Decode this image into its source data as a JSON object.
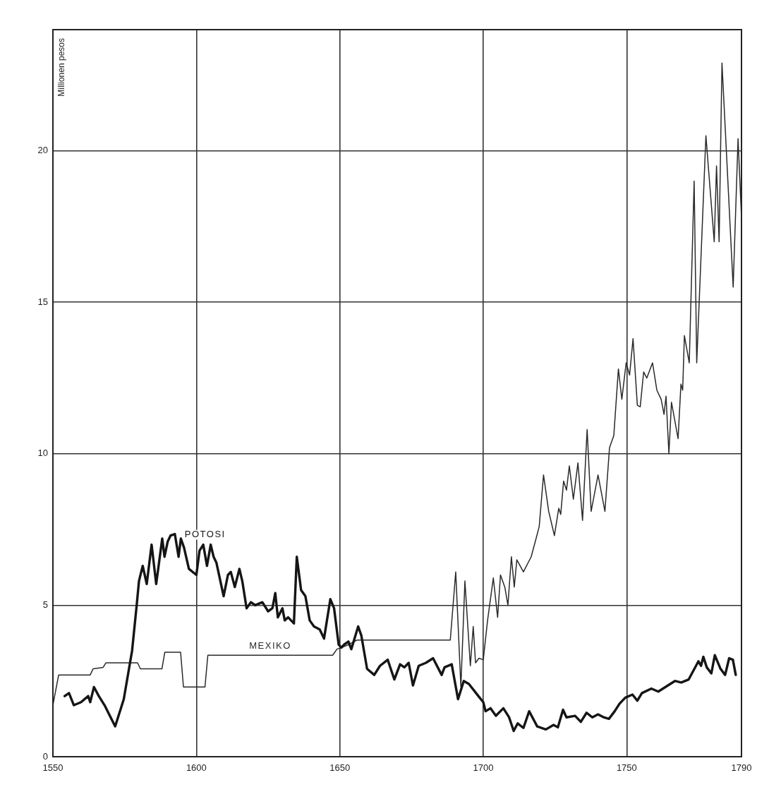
{
  "chart_data": {
    "type": "line",
    "ylabel": "Millionen pesos",
    "xlim": [
      1550,
      1790
    ],
    "xticks": [
      1550,
      1600,
      1650,
      1700,
      1750,
      1790
    ],
    "ylim": [
      0,
      24
    ],
    "yticks": [
      0,
      5,
      10,
      15,
      20
    ],
    "grid": true,
    "legend": false,
    "marker": "none",
    "line_style": "solid",
    "series": [
      {
        "name": "POTOSI",
        "color": "#151515",
        "x": [
          1554.1,
          1555.6,
          1557.3,
          1559.8,
          1562.3,
          1563,
          1564.3,
          1566,
          1568,
          1571.7,
          1574.7,
          1577.6,
          1579.2,
          1580,
          1581.3,
          1582.7,
          1584.4,
          1586,
          1588.1,
          1588.9,
          1590,
          1591,
          1592.5,
          1593.8,
          1594.6,
          1595.7,
          1597.4,
          1600,
          1601.1,
          1602.4,
          1603.7,
          1605,
          1606,
          1607,
          1609.5,
          1611,
          1612,
          1613.4,
          1615,
          1616,
          1617.5,
          1619,
          1620.5,
          1623,
          1625,
          1626.5,
          1627.5,
          1628.4,
          1630,
          1630.8,
          1632,
          1634,
          1635,
          1636.5,
          1638,
          1639.5,
          1641,
          1643,
          1644.5,
          1646.7,
          1648,
          1649.6,
          1650.5,
          1651.5,
          1653,
          1654,
          1656.4,
          1657.5,
          1659.5,
          1662,
          1664,
          1666.7,
          1669,
          1671,
          1672.5,
          1674,
          1675.5,
          1677.5,
          1680,
          1682.5,
          1685.5,
          1686.5,
          1689,
          1691.2,
          1693.2,
          1695,
          1698.3,
          1700,
          1700.8,
          1702.5,
          1704.4,
          1707,
          1709,
          1710.6,
          1712,
          1714,
          1716,
          1718.8,
          1721.8,
          1724.5,
          1726,
          1727.8,
          1729,
          1732,
          1734,
          1736,
          1738,
          1740,
          1742,
          1743.8,
          1745.8,
          1747.5,
          1749.5,
          1752,
          1753.7,
          1755.3,
          1758.6,
          1761,
          1763.5,
          1766.8,
          1769,
          1771.6,
          1775,
          1775.9,
          1776.7,
          1777.9,
          1779.5,
          1780.7,
          1782.7,
          1784.3,
          1785.7,
          1787,
          1788
        ],
        "values": [
          2.0,
          2.1,
          1.7,
          1.8,
          2.0,
          1.8,
          2.3,
          2.0,
          1.7,
          1.0,
          1.9,
          3.5,
          5.0,
          5.8,
          6.3,
          5.7,
          7.0,
          5.7,
          7.2,
          6.6,
          7.1,
          7.3,
          7.35,
          6.6,
          7.2,
          6.9,
          6.2,
          6.0,
          6.8,
          7.0,
          6.3,
          7.0,
          6.6,
          6.4,
          5.3,
          6.0,
          6.1,
          5.6,
          6.2,
          5.8,
          4.9,
          5.1,
          5.0,
          5.1,
          4.8,
          4.9,
          5.4,
          4.6,
          4.9,
          4.5,
          4.6,
          4.4,
          6.6,
          5.5,
          5.3,
          4.5,
          4.3,
          4.2,
          3.9,
          5.2,
          4.9,
          3.7,
          3.6,
          3.7,
          3.8,
          3.55,
          4.3,
          4.0,
          2.9,
          2.7,
          3.0,
          3.2,
          2.55,
          3.05,
          2.95,
          3.1,
          2.35,
          3.0,
          3.1,
          3.25,
          2.7,
          2.95,
          3.05,
          1.9,
          2.5,
          2.4,
          2.0,
          1.8,
          1.5,
          1.6,
          1.35,
          1.6,
          1.3,
          0.85,
          1.1,
          0.95,
          1.5,
          1.0,
          0.9,
          1.05,
          0.97,
          1.55,
          1.3,
          1.35,
          1.15,
          1.45,
          1.3,
          1.4,
          1.3,
          1.25,
          1.5,
          1.75,
          1.95,
          2.05,
          1.85,
          2.1,
          2.25,
          2.15,
          2.3,
          2.5,
          2.45,
          2.55,
          3.15,
          3.0,
          3.3,
          2.95,
          2.75,
          3.35,
          2.9,
          2.7,
          3.25,
          3.2,
          2.7
        ]
      },
      {
        "name": "MEXIKO",
        "color": "#2a2a2a",
        "x": [
          1550,
          1552,
          1563,
          1564,
          1567.5,
          1568.5,
          1579.5,
          1580.5,
          1588,
          1589,
          1594.5,
          1595.5,
          1603,
          1604,
          1647.5,
          1649,
          1650.5,
          1653,
          1656,
          1688.5,
          1690.4,
          1692.2,
          1693.6,
          1695.5,
          1696.5,
          1697.3,
          1698.5,
          1700,
          1701.5,
          1703.5,
          1705,
          1706,
          1707.5,
          1708.6,
          1709.8,
          1710.8,
          1711.7,
          1714,
          1716.7,
          1718.4,
          1719.5,
          1721,
          1722.8,
          1724.8,
          1726.3,
          1727,
          1728,
          1729,
          1730,
          1731.4,
          1733,
          1734.6,
          1736.2,
          1737.6,
          1740,
          1742.4,
          1744,
          1745.5,
          1747.1,
          1748.3,
          1749.8,
          1751,
          1752.2,
          1753.7,
          1754.7,
          1755.9,
          1757,
          1759,
          1760.5,
          1762,
          1763,
          1763.7,
          1764.7,
          1765.6,
          1767.9,
          1768.9,
          1769.5,
          1770.1,
          1771.8,
          1773.5,
          1774.4,
          1777.6,
          1780.5,
          1781.3,
          1782.2,
          1783.2,
          1787.1,
          1788.8,
          1790
        ],
        "values": [
          1.7,
          2.7,
          2.7,
          2.9,
          2.95,
          3.1,
          3.1,
          2.9,
          2.9,
          3.45,
          3.45,
          2.3,
          2.3,
          3.35,
          3.35,
          3.55,
          3.6,
          3.7,
          3.85,
          3.85,
          6.1,
          2.3,
          5.8,
          3.0,
          4.3,
          3.1,
          3.25,
          3.2,
          4.5,
          5.9,
          4.6,
          6.0,
          5.6,
          5.0,
          6.6,
          5.6,
          6.5,
          6.1,
          6.6,
          7.2,
          7.6,
          9.3,
          8.1,
          7.3,
          8.2,
          8.0,
          9.1,
          8.8,
          9.6,
          8.5,
          9.7,
          7.8,
          10.8,
          8.1,
          9.3,
          8.1,
          10.2,
          10.6,
          12.8,
          11.8,
          13.0,
          12.6,
          13.8,
          11.6,
          11.55,
          12.7,
          12.5,
          13.0,
          12.1,
          11.8,
          11.3,
          11.9,
          10.0,
          11.7,
          10.5,
          12.3,
          12.1,
          13.9,
          13.0,
          19.0,
          13.0,
          20.5,
          17.0,
          19.5,
          17.0,
          22.9,
          15.5,
          20.4,
          17.8
        ]
      }
    ]
  }
}
